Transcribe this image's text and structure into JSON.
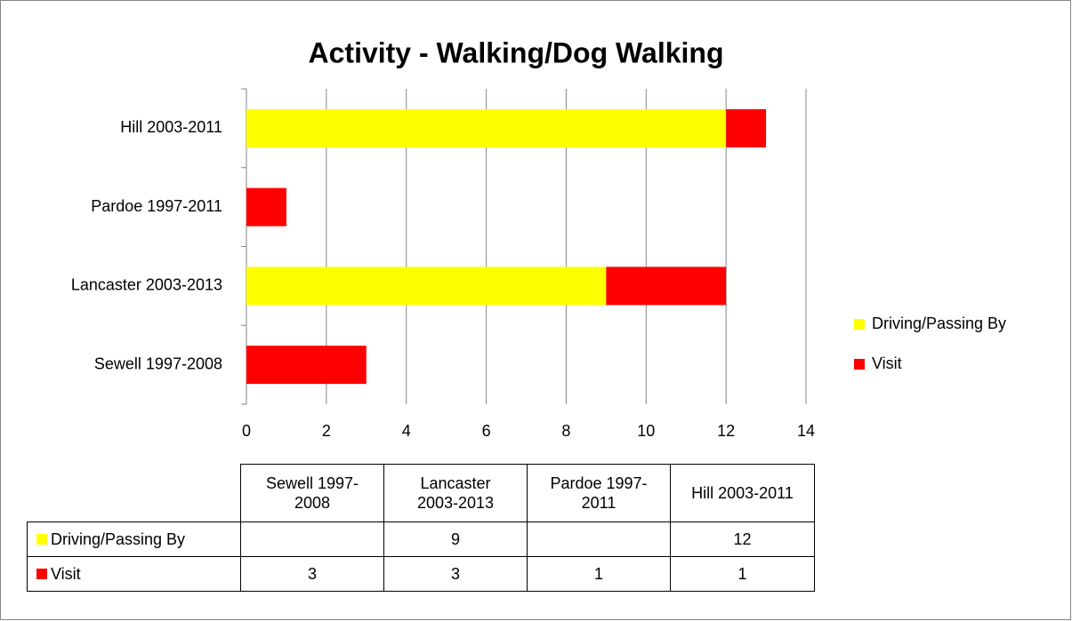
{
  "chart_data": {
    "type": "stacked_bar_horizontal",
    "title": "Activity - Walking/Dog Walking",
    "categories": [
      "Sewell 1997-2008",
      "Lancaster 2003-2013",
      "Pardoe 1997-2011",
      "Hill 2003-2011"
    ],
    "series": [
      {
        "name": "Driving/Passing By",
        "color": "#ffff00",
        "values": [
          null,
          9,
          null,
          12
        ]
      },
      {
        "name": "Visit",
        "color": "#ff0000",
        "values": [
          3,
          3,
          1,
          1
        ]
      }
    ],
    "xlim": [
      0,
      14
    ],
    "xticks": [
      0,
      2,
      4,
      6,
      8,
      10,
      12,
      14
    ],
    "grid": true,
    "legend": "right",
    "data_table": true
  }
}
